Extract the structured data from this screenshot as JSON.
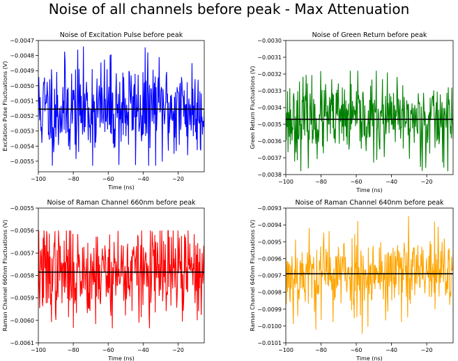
{
  "figure": {
    "title": "Noise of all channels before peak - Max Attenuation"
  },
  "chart_data": [
    {
      "type": "line",
      "title": "Noise of Excitation Pulse before peak",
      "xlabel": "Time (ns)",
      "ylabel": "Excitation Pulse Fluctuations (V)",
      "xlim": [
        -100,
        -5
      ],
      "ylim": [
        -0.00557,
        -0.0047
      ],
      "xticks": [
        -100,
        -80,
        -60,
        -40,
        -20
      ],
      "xtick_labels": [
        "−100",
        "−80",
        "−60",
        "−40",
        "−20"
      ],
      "yticks": [
        -0.0047,
        -0.0048,
        -0.0049,
        -0.005,
        -0.0051,
        -0.0052,
        -0.0053,
        -0.0054,
        -0.0055
      ],
      "ytick_labels": [
        "−0.0047",
        "−0.0048",
        "−0.0049",
        "−0.0050",
        "−0.0051",
        "−0.0052",
        "−0.0053",
        "−0.0054",
        "−0.0055"
      ],
      "series": [
        {
          "color": "#0000ff",
          "style": "noise",
          "mean": -0.005155,
          "std": 0.000165,
          "min": -0.00553,
          "max": -0.00474,
          "seed": 11,
          "x_start": -100,
          "x_end": -5,
          "n_points": 380
        },
        {
          "color": "#000000",
          "style": "hline",
          "y": -0.005155
        }
      ],
      "grid": false
    },
    {
      "type": "line",
      "title": "Noise of Green Return before peak",
      "xlabel": "Time (ns)",
      "ylabel": "Green Return Fluctuations (V)",
      "xlim": [
        -100,
        -5
      ],
      "ylim": [
        -0.0038,
        -0.003
      ],
      "xticks": [
        -100,
        -80,
        -60,
        -40,
        -20
      ],
      "xtick_labels": [
        "−100",
        "−80",
        "−60",
        "−40",
        "−20"
      ],
      "yticks": [
        -0.003,
        -0.0031,
        -0.0032,
        -0.0033,
        -0.0034,
        -0.0035,
        -0.0036,
        -0.0037,
        -0.0038
      ],
      "ytick_labels": [
        "−0.0030",
        "−0.0031",
        "−0.0032",
        "−0.0033",
        "−0.0034",
        "−0.0035",
        "−0.0036",
        "−0.0037",
        "−0.0038"
      ],
      "series": [
        {
          "color": "#008000",
          "style": "noise",
          "mean": -0.00347,
          "std": 0.000115,
          "min": -0.00378,
          "max": -0.00318,
          "seed": 23,
          "x_start": -100,
          "x_end": -5,
          "n_points": 380
        },
        {
          "color": "#000000",
          "style": "hline",
          "y": -0.00347
        }
      ],
      "grid": false
    },
    {
      "type": "line",
      "title": "Noise of Raman Channel 660nm before peak",
      "xlabel": "Time (ns)",
      "ylabel": "Raman Channel 660nm Fluctuations (V)",
      "xlim": [
        -100,
        -5
      ],
      "ylim": [
        -0.0061,
        -0.0055
      ],
      "xticks": [
        -100,
        -80,
        -60,
        -40,
        -20
      ],
      "xtick_labels": [
        "−100",
        "−80",
        "−60",
        "−40",
        "−20"
      ],
      "yticks": [
        -0.0055,
        -0.0056,
        -0.0057,
        -0.0058,
        -0.0059,
        -0.006,
        -0.0061
      ],
      "ytick_labels": [
        "−0.0055",
        "−0.0056",
        "−0.0057",
        "−0.0058",
        "−0.0059",
        "−0.0060",
        "−0.0061"
      ],
      "series": [
        {
          "color": "#ff0000",
          "style": "noise",
          "mean": -0.005785,
          "std": 0.000105,
          "min": -0.00604,
          "max": -0.0056,
          "seed": 37,
          "x_start": -100,
          "x_end": -5,
          "n_points": 380
        },
        {
          "color": "#000000",
          "style": "hline",
          "y": -0.005785
        }
      ],
      "grid": false
    },
    {
      "type": "line",
      "title": "Noise of Raman Channel 640nm before peak",
      "xlabel": "Time (ns)",
      "ylabel": "Raman Channel 640nm Fluctuations (V)",
      "xlim": [
        -100,
        -5
      ],
      "ylim": [
        -0.0101,
        -0.0093
      ],
      "xticks": [
        -100,
        -80,
        -60,
        -40,
        -20
      ],
      "xtick_labels": [
        "−100",
        "−80",
        "−60",
        "−40",
        "−20"
      ],
      "yticks": [
        -0.0093,
        -0.0094,
        -0.0095,
        -0.0096,
        -0.0097,
        -0.0098,
        -0.0099,
        -0.01,
        -0.0101
      ],
      "ytick_labels": [
        "−0.0093",
        "−0.0094",
        "−0.0095",
        "−0.0096",
        "−0.0097",
        "−0.0098",
        "−0.0099",
        "−0.0100",
        "−0.0101"
      ],
      "series": [
        {
          "color": "#ffa500",
          "style": "noise",
          "mean": -0.00969,
          "std": 0.000125,
          "min": -0.01005,
          "max": -0.00932,
          "seed": 53,
          "x_start": -100,
          "x_end": -5,
          "n_points": 380
        },
        {
          "color": "#000000",
          "style": "hline",
          "y": -0.00969
        }
      ],
      "grid": false
    }
  ]
}
